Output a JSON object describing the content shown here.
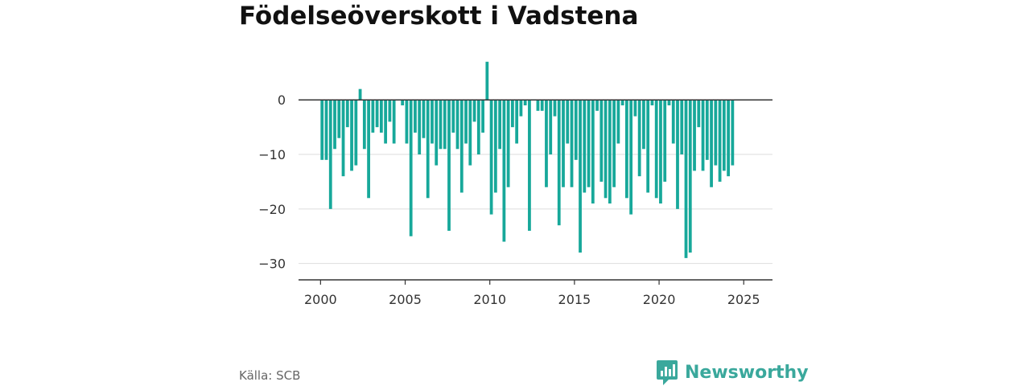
{
  "title": "Födelseöverskott i Vadstena",
  "source": "Källa: SCB",
  "brand": {
    "name": "Newsworthy",
    "icon": "newsworthy-logo-icon"
  },
  "colors": {
    "bar": "#17a89a",
    "axis": "#333333",
    "grid": "#dddddd",
    "brand": "#3aa89c"
  },
  "chart_data": {
    "type": "bar",
    "title": "Födelseöverskott i Vadstena",
    "xlabel": "",
    "ylabel": "",
    "x_start": 2000,
    "x_step": 0.25,
    "xlim": [
      1998.7,
      2026.7
    ],
    "ylim": [
      -33,
      8
    ],
    "xticks": [
      2000,
      2005,
      2010,
      2015,
      2020,
      2025
    ],
    "yticks": [
      0,
      -10,
      -20,
      -30
    ],
    "grid": true,
    "values": [
      -11,
      -11,
      -20,
      -9,
      -7,
      -14,
      -5,
      -13,
      -12,
      2,
      -9,
      -18,
      -6,
      -5,
      -6,
      -8,
      -4,
      -8,
      0,
      -1,
      -8,
      -25,
      -6,
      -10,
      -7,
      -18,
      -8,
      -12,
      -9,
      -9,
      -24,
      -6,
      -9,
      -17,
      -8,
      -12,
      -4,
      -10,
      -6,
      7,
      -21,
      -17,
      -9,
      -26,
      -16,
      -5,
      -8,
      -3,
      -1,
      -24,
      0,
      -2,
      -2,
      -16,
      -10,
      -3,
      -23,
      -16,
      -8,
      -16,
      -11,
      -28,
      -17,
      -16,
      -19,
      -2,
      -15,
      -18,
      -19,
      -16,
      -8,
      -1,
      -18,
      -21,
      -3,
      -14,
      -9,
      -17,
      -1,
      -18,
      -19,
      -15,
      -1,
      -8,
      -20,
      -10,
      -29,
      -28,
      -13,
      -5,
      -13,
      -11,
      -16,
      -12,
      -15,
      -13,
      -14,
      -12
    ]
  }
}
